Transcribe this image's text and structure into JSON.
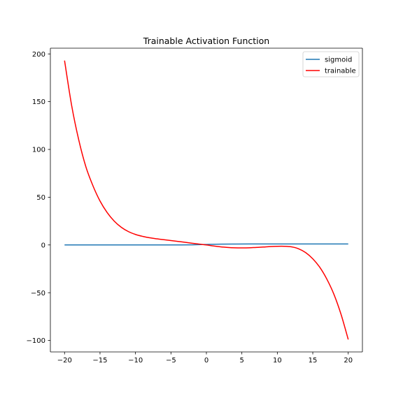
{
  "chart_data": {
    "type": "line",
    "title": "Trainable Activation Function",
    "xlabel": "",
    "ylabel": "",
    "xlim": [
      -22,
      22
    ],
    "ylim": [
      -112,
      206
    ],
    "x_ticks": [
      -20,
      -15,
      -10,
      -5,
      0,
      5,
      10,
      15,
      20
    ],
    "y_ticks": [
      -100,
      -50,
      0,
      50,
      100,
      150,
      200
    ],
    "x_tick_labels": [
      "−20",
      "−15",
      "−10",
      "−5",
      "0",
      "5",
      "10",
      "15",
      "20"
    ],
    "y_tick_labels": [
      "−100",
      "−50",
      "0",
      "50",
      "100",
      "150",
      "200"
    ],
    "grid": false,
    "legend_position": "upper right",
    "series": [
      {
        "name": "sigmoid",
        "color": "#1f77b4",
        "x": [
          -20,
          -18,
          -16,
          -14,
          -12,
          -10,
          -8,
          -6,
          -4,
          -2,
          0,
          2,
          4,
          6,
          8,
          10,
          12,
          14,
          16,
          18,
          20
        ],
        "y": [
          0.0,
          0.0,
          0.0,
          0.0,
          0.0,
          0.0,
          0.0,
          0.0,
          0.02,
          0.12,
          0.5,
          0.88,
          0.98,
          1.0,
          1.0,
          1.0,
          1.0,
          1.0,
          1.0,
          1.0,
          1.0
        ]
      },
      {
        "name": "trainable",
        "color": "#ff0000",
        "x": [
          -20,
          -19,
          -18,
          -17,
          -16,
          -15,
          -14,
          -13,
          -12,
          -11,
          -10,
          -9,
          -8,
          -7,
          -6,
          -5,
          -4,
          -3,
          -2,
          -1,
          0,
          1,
          2,
          3,
          4,
          5,
          6,
          7,
          8,
          9,
          10,
          11,
          12,
          13,
          14,
          15,
          16,
          17,
          18,
          19,
          20
        ],
        "y": [
          193,
          146,
          110,
          82,
          62,
          46,
          34,
          25,
          18.5,
          14,
          11,
          9,
          7.5,
          6.4,
          5.5,
          4.6,
          3.7,
          2.8,
          1.8,
          0.9,
          0,
          -1.1,
          -2.0,
          -2.6,
          -3.0,
          -3.1,
          -3.0,
          -2.6,
          -2.2,
          -1.7,
          -1.4,
          -1.4,
          -2.0,
          -4.0,
          -8.0,
          -14.5,
          -23.5,
          -36,
          -52,
          -73,
          -99
        ]
      }
    ]
  }
}
